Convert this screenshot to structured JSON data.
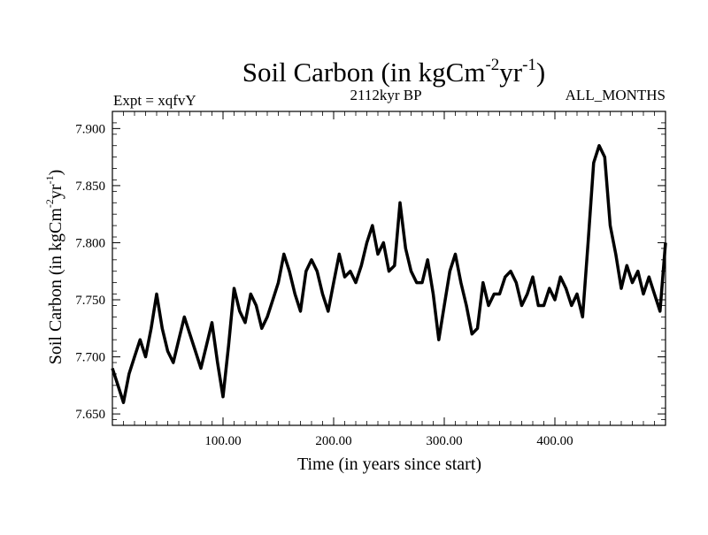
{
  "chart_data": {
    "type": "line",
    "title": "Soil Carbon (in kgCm",
    "title_sup1": "-2",
    "title_mid": "yr",
    "title_sup2": "-1",
    "title_end": ")",
    "subtitle_left": "Expt = xqfvY",
    "subtitle_center": "2112kyr BP",
    "subtitle_right": "ALL_MONTHS",
    "xlabel": "Time (in years since start)",
    "ylabel": "Soil Carbon (in kgCm",
    "ylabel_sup1": "-2",
    "ylabel_mid": "yr",
    "ylabel_sup2": "-1",
    "ylabel_end": ")",
    "xlim": [
      0,
      500
    ],
    "ylim": [
      7.64,
      7.915
    ],
    "x_ticks": [
      100,
      200,
      300,
      400
    ],
    "x_tick_labels": [
      "100.00",
      "200.00",
      "300.00",
      "400.00"
    ],
    "y_ticks": [
      7.65,
      7.7,
      7.75,
      7.8,
      7.85,
      7.9
    ],
    "y_tick_labels": [
      "7.650",
      "7.700",
      "7.750",
      "7.800",
      "7.850",
      "7.900"
    ],
    "line_color": "#000000",
    "grid": false,
    "series": [
      {
        "x": [
          0,
          5,
          10,
          15,
          20,
          25,
          30,
          35,
          40,
          45,
          50,
          55,
          60,
          65,
          70,
          75,
          80,
          85,
          90,
          95,
          100,
          105,
          110,
          115,
          120,
          125,
          130,
          135,
          140,
          145,
          150,
          155,
          160,
          165,
          170,
          175,
          180,
          185,
          190,
          195,
          200,
          205,
          210,
          215,
          220,
          225,
          230,
          235,
          240,
          245,
          250,
          255,
          260,
          265,
          270,
          275,
          280,
          285,
          290,
          295,
          300,
          305,
          310,
          315,
          320,
          325,
          330,
          335,
          340,
          345,
          350,
          355,
          360,
          365,
          370,
          375,
          380,
          385,
          390,
          395,
          400,
          405,
          410,
          415,
          420,
          425,
          430,
          435,
          440,
          445,
          450,
          455,
          460,
          465,
          470,
          475,
          480,
          485,
          490,
          495,
          500
        ],
        "values": [
          7.69,
          7.675,
          7.66,
          7.685,
          7.7,
          7.715,
          7.7,
          7.725,
          7.755,
          7.725,
          7.705,
          7.695,
          7.715,
          7.735,
          7.72,
          7.705,
          7.69,
          7.71,
          7.73,
          7.695,
          7.665,
          7.71,
          7.76,
          7.74,
          7.73,
          7.755,
          7.745,
          7.725,
          7.735,
          7.75,
          7.765,
          7.79,
          7.775,
          7.755,
          7.74,
          7.775,
          7.785,
          7.775,
          7.755,
          7.74,
          7.765,
          7.79,
          7.77,
          7.775,
          7.765,
          7.78,
          7.8,
          7.815,
          7.79,
          7.8,
          7.775,
          7.78,
          7.835,
          7.795,
          7.775,
          7.765,
          7.765,
          7.785,
          7.755,
          7.715,
          7.745,
          7.775,
          7.79,
          7.765,
          7.745,
          7.72,
          7.725,
          7.765,
          7.745,
          7.755,
          7.755,
          7.77,
          7.775,
          7.765,
          7.745,
          7.755,
          7.77,
          7.745,
          7.745,
          7.76,
          7.75,
          7.77,
          7.76,
          7.745,
          7.755,
          7.735,
          7.8,
          7.87,
          7.885,
          7.875,
          7.815,
          7.79,
          7.76,
          7.78,
          7.765,
          7.775,
          7.755,
          7.77,
          7.755,
          7.74,
          7.8
        ]
      }
    ]
  }
}
